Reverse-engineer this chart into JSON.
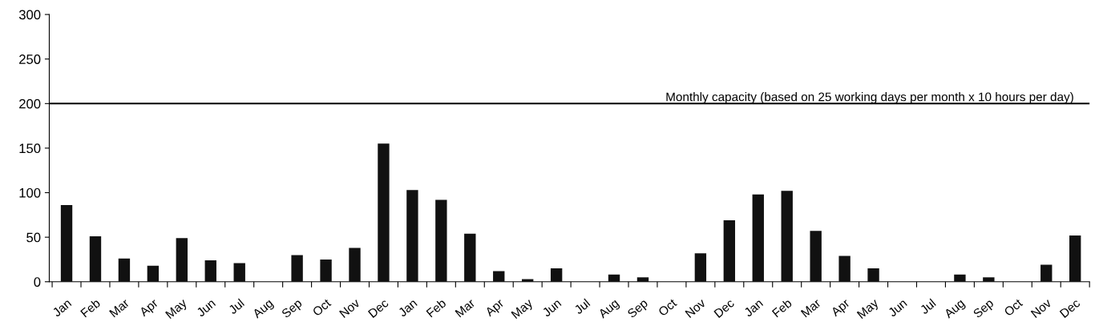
{
  "chart_data": {
    "type": "bar",
    "categories": [
      "Jan",
      "Feb",
      "Mar",
      "Apr",
      "May",
      "Jun",
      "Jul",
      "Aug",
      "Sep",
      "Oct",
      "Nov",
      "Dec",
      "Jan",
      "Feb",
      "Mar",
      "Apr",
      "May",
      "Jun",
      "Jul",
      "Aug",
      "Sep",
      "Oct",
      "Nov",
      "Dec",
      "Jan",
      "Feb",
      "Mar",
      "Apr",
      "May",
      "Jun",
      "Jul",
      "Aug",
      "Sep",
      "Oct",
      "Nov",
      "Dec"
    ],
    "values": [
      86,
      51,
      26,
      18,
      49,
      24,
      21,
      0,
      30,
      25,
      38,
      155,
      103,
      92,
      54,
      12,
      3,
      15,
      0,
      8,
      5,
      0,
      32,
      69,
      98,
      102,
      57,
      29,
      15,
      0,
      0,
      8,
      5,
      0,
      19,
      52
    ],
    "color": "#111111",
    "ylim": [
      0,
      300
    ],
    "yticks": [
      0,
      50,
      100,
      150,
      200,
      250,
      300
    ],
    "grid": false,
    "ref_lines": [
      {
        "axis": "y",
        "value": 200,
        "label": "Monthly capacity (based on 25 working days per month x 10 hours per day)",
        "color": "#000000"
      }
    ]
  }
}
